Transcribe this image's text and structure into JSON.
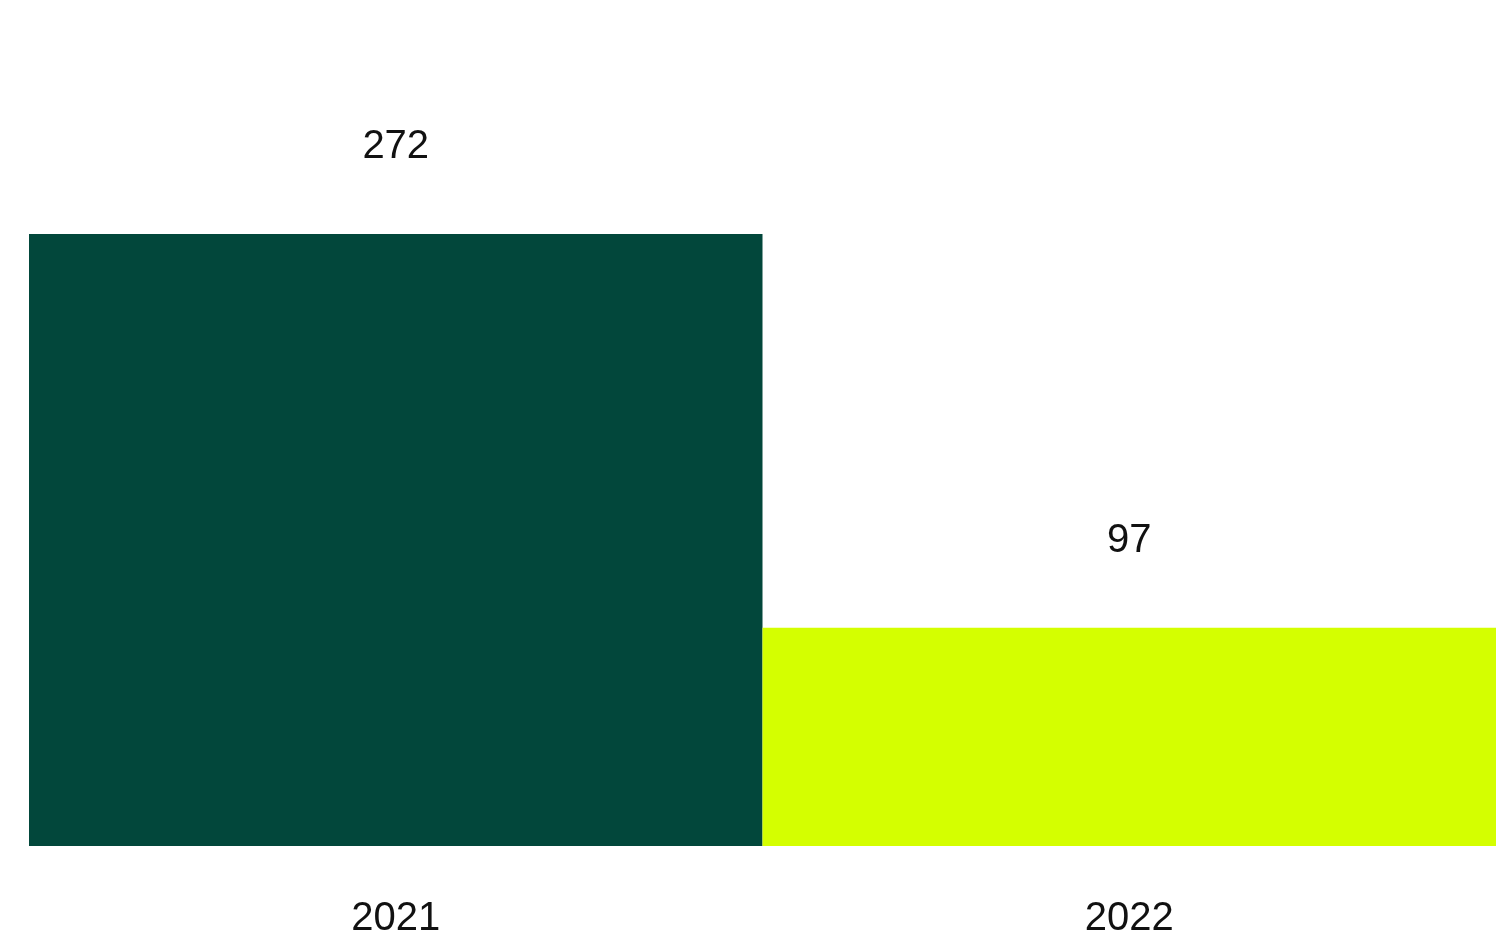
{
  "chart_data": {
    "type": "bar",
    "categories": [
      "2021",
      "2022"
    ],
    "values": [
      272,
      97
    ],
    "colors": [
      "#02473b",
      "#d4ff00"
    ],
    "data_labels": true
  }
}
